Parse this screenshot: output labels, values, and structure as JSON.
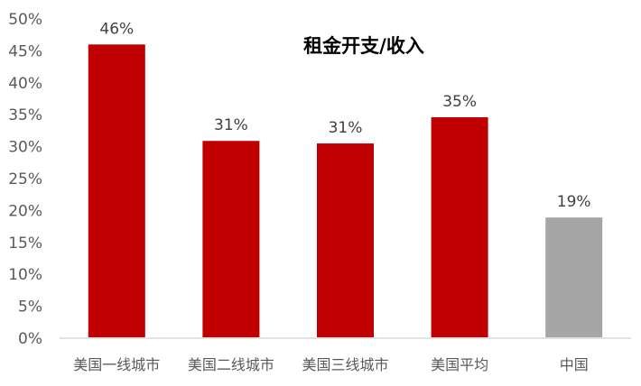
{
  "chart_data": {
    "type": "bar",
    "title": "租金开支/收入",
    "categories": [
      "美国一线城市",
      "美国二线城市",
      "美国三线城市",
      "美国平均",
      "中国"
    ],
    "values": [
      46.0,
      30.9,
      30.5,
      34.6,
      18.9
    ],
    "data_labels": [
      "46%",
      "31%",
      "31%",
      "35%",
      "19%"
    ],
    "bar_colors": [
      "#C00000",
      "#C00000",
      "#C00000",
      "#C00000",
      "#A6A6A6"
    ],
    "ylim": [
      0,
      50
    ],
    "yticks": [
      "0%",
      "5%",
      "10%",
      "15%",
      "20%",
      "25%",
      "30%",
      "35%",
      "40%",
      "45%",
      "50%"
    ],
    "xlabel": "",
    "ylabel": "",
    "grid": false,
    "legend": "none"
  }
}
